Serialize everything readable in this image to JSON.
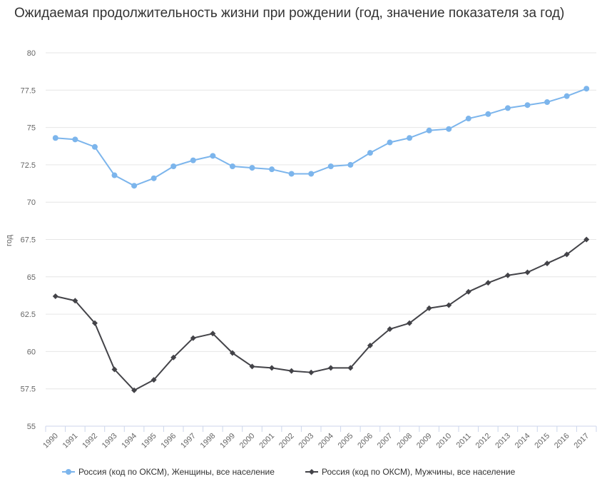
{
  "title": "Ожидаемая продолжительность жизни при рождении (год, значение показателя за год)",
  "chart_data": {
    "type": "line",
    "title": "Ожидаемая продолжительность жизни при рождении (год, значение показателя за год)",
    "xlabel": "",
    "ylabel": "год",
    "ylim": [
      55,
      80
    ],
    "yticks": [
      "80",
      "77.5",
      "75",
      "72.5",
      "70",
      "67.5",
      "65",
      "62.5",
      "60",
      "57.5",
      "55"
    ],
    "grid": true,
    "legend_position": "bottom",
    "categories": [
      "1990",
      "1991",
      "1992",
      "1993",
      "1994",
      "1995",
      "1996",
      "1997",
      "1998",
      "1999",
      "2000",
      "2001",
      "2002",
      "2003",
      "2004",
      "2005",
      "2006",
      "2007",
      "2008",
      "2009",
      "2010",
      "2011",
      "2012",
      "2013",
      "2014",
      "2015",
      "2016",
      "2017"
    ],
    "series": [
      {
        "name": "Россия (код по ОКСМ), Женщины, все население",
        "color": "#7cb5ec",
        "marker": "circle",
        "values": [
          74.3,
          74.2,
          73.7,
          71.8,
          71.1,
          71.6,
          72.4,
          72.8,
          73.1,
          72.4,
          72.3,
          72.2,
          71.9,
          71.9,
          72.4,
          72.5,
          73.3,
          74.0,
          74.3,
          74.8,
          74.9,
          75.6,
          75.9,
          76.3,
          76.5,
          76.7,
          77.1,
          77.6
        ]
      },
      {
        "name": "Россия (код по ОКСМ), Мужчины, все население",
        "color": "#434348",
        "marker": "diamond",
        "values": [
          63.7,
          63.4,
          61.9,
          58.8,
          57.4,
          58.1,
          59.6,
          60.9,
          61.2,
          59.9,
          59.0,
          58.9,
          58.7,
          58.6,
          58.9,
          58.9,
          60.4,
          61.5,
          61.9,
          62.9,
          63.1,
          64.0,
          64.6,
          65.1,
          65.3,
          65.9,
          66.5,
          67.5
        ]
      }
    ]
  }
}
